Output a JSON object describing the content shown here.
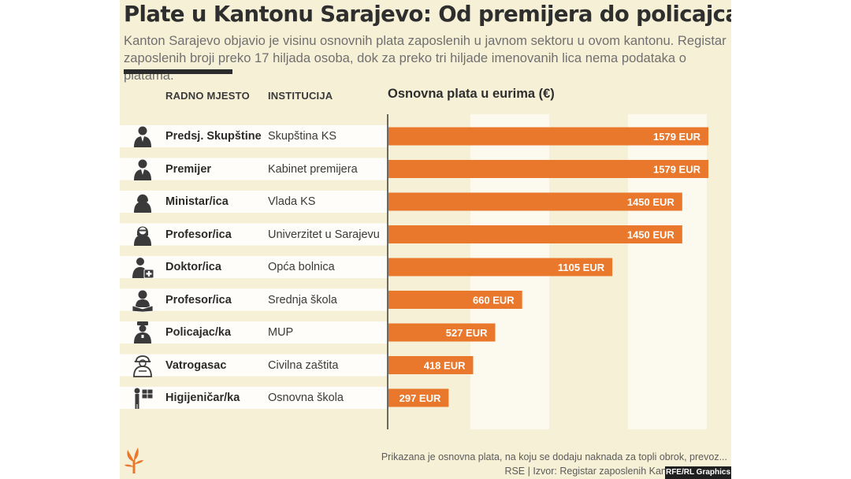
{
  "title": "Plate u Kantonu Sarajevo: Od premijera do policajca",
  "subtitle": "Kanton Sarajevo objavio je visinu osnovnih plata zaposlenih u javnom sektoru u ovom kantonu. Registar zaposlenih broji preko 17 hiljada osoba, dok za preko tri hiljade imenovanih lica nema podataka o platama.",
  "columns": {
    "job": "RADNO MJESTO",
    "institution": "INSTITUCIJA"
  },
  "footnote": {
    "line1": "Prikazana je osnovna plata, na koju se dodaju naknada za topli obrok, prevoz...",
    "line2": "RSE | Izvor: Registar zaposlenih Kantona Sarajevo"
  },
  "badge": "RFE/RL Graphics",
  "colors": {
    "bar": "#e9782d",
    "background": "#f6f1d6",
    "band": "#fcfaee"
  },
  "chart_data": {
    "type": "bar",
    "orientation": "horizontal",
    "title": "Osnovna plata u eurima (€)",
    "unit": "EUR",
    "xlim": [
      0,
      1600
    ],
    "categories": [
      "Predsj. Skupštine",
      "Premijer",
      "Ministar/ica",
      "Profesor/ica",
      "Doktor/ica",
      "Profesor/ica",
      "Policajac/ka",
      "Vatrogasac",
      "Higijeničar/ka"
    ],
    "institutions": [
      "Skupština KS",
      "Kabinet premijera",
      "Vlada KS",
      "Univerzitet u Sarajevu",
      "Opća bolnica",
      "Srednja škola",
      "MUP",
      "Civilna zaštita",
      "Osnovna škola"
    ],
    "values": [
      1579,
      1579,
      1450,
      1450,
      1105,
      660,
      527,
      418,
      297
    ],
    "data_labels": [
      "1579 EUR",
      "1579 EUR",
      "1450 EUR",
      "1450 EUR",
      "1105 EUR",
      "660 EUR",
      "527 EUR",
      "418 EUR",
      "297 EUR"
    ],
    "icons": [
      "person-suit-icon",
      "person-suit-icon",
      "person-woman-icon",
      "person-glasses-icon",
      "doctor-icon",
      "teacher-book-icon",
      "police-officer-icon",
      "firefighter-icon",
      "cleaner-icon"
    ]
  }
}
